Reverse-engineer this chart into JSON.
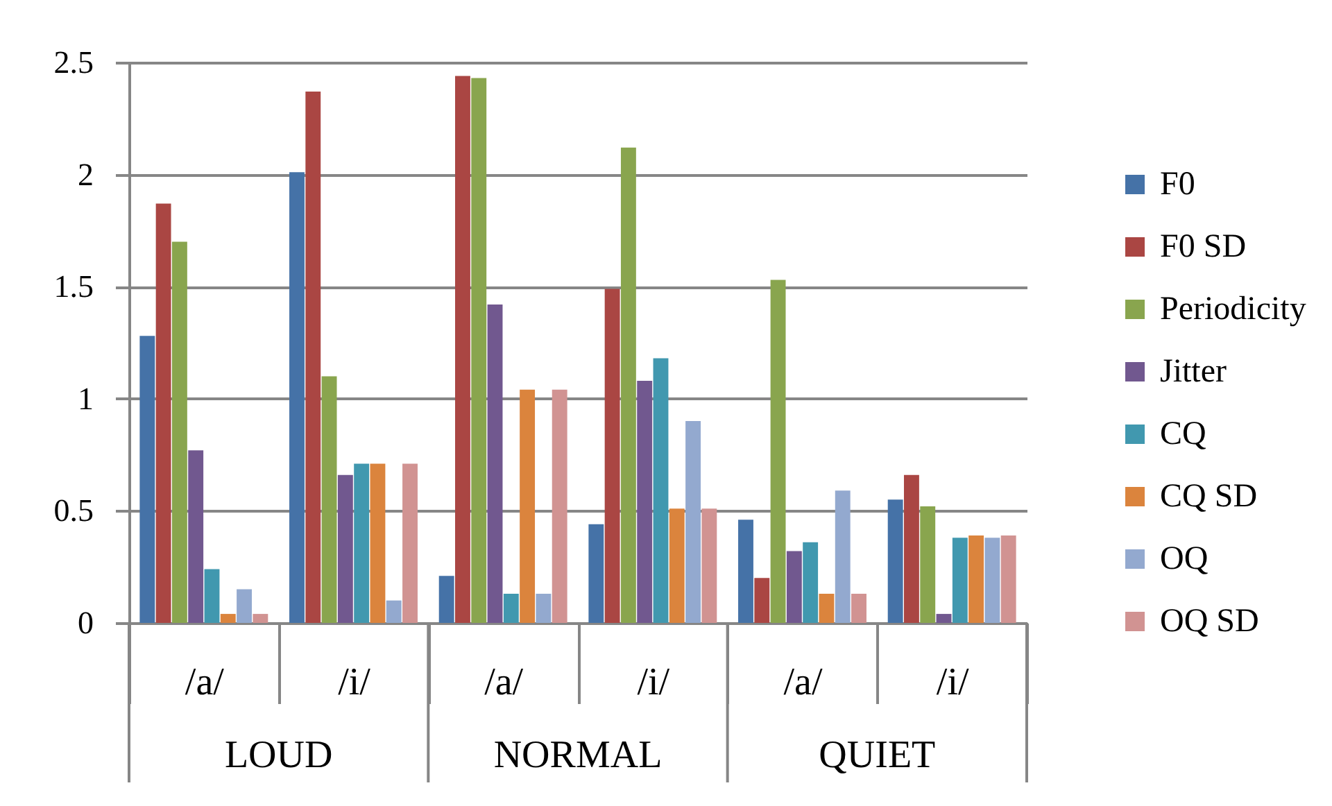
{
  "chart_data": {
    "type": "bar",
    "categories": [
      "/a/",
      "/i/",
      "/a/",
      "/i/",
      "/a/",
      "/i/"
    ],
    "annotations": [
      "LOUD",
      "NORMAL",
      "QUIET"
    ],
    "series": [
      {
        "name": "F0",
        "color": "#4572a7",
        "values": [
          1.28,
          2.01,
          0.21,
          0.44,
          0.46,
          0.55
        ]
      },
      {
        "name": "F0 SD",
        "color": "#aa4643",
        "values": [
          1.87,
          2.37,
          2.44,
          1.49,
          0.2,
          0.66
        ]
      },
      {
        "name": "Periodicity",
        "color": "#89a54e",
        "values": [
          1.7,
          1.1,
          2.43,
          2.12,
          1.53,
          0.52
        ]
      },
      {
        "name": "Jitter",
        "color": "#71588f",
        "values": [
          0.77,
          0.66,
          1.42,
          1.08,
          0.32,
          0.04
        ]
      },
      {
        "name": "CQ",
        "color": "#4198af",
        "values": [
          0.24,
          0.71,
          0.13,
          1.18,
          0.36,
          0.38
        ]
      },
      {
        "name": "CQ SD",
        "color": "#db843d",
        "values": [
          0.04,
          0.71,
          1.04,
          0.51,
          0.13,
          0.39
        ]
      },
      {
        "name": "OQ",
        "color": "#93a9cf",
        "values": [
          0.15,
          0.1,
          0.13,
          0.9,
          0.59,
          0.38
        ]
      },
      {
        "name": "OQ SD",
        "color": "#d19392",
        "values": [
          0.04,
          0.71,
          1.04,
          0.51,
          0.13,
          0.39
        ]
      }
    ],
    "ylim": [
      0,
      2.5
    ],
    "yticks": [
      0,
      0.5,
      1,
      1.5,
      2,
      2.5
    ],
    "grid": "y",
    "legend": "right"
  }
}
